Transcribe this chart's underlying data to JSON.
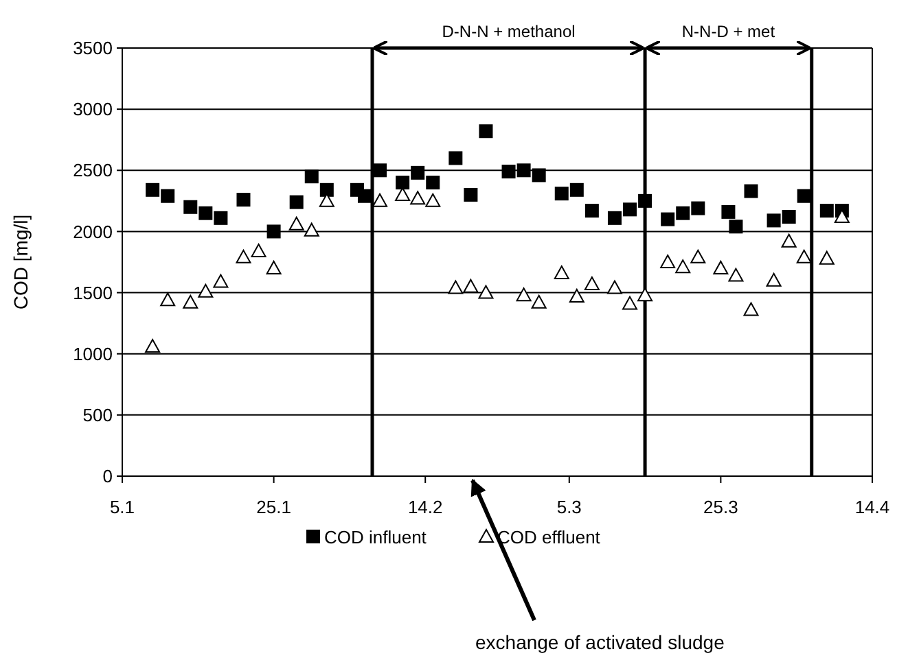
{
  "chart_data": {
    "type": "scatter",
    "ylabel": "COD [mg/l]",
    "xlim": [
      "--01-05",
      "--04-14"
    ],
    "xticks": [
      {
        "value": "--01-05",
        "label": "5.1"
      },
      {
        "value": "--01-25",
        "label": "25.1"
      },
      {
        "value": "--02-14",
        "label": "14.2"
      },
      {
        "value": "--03-05",
        "label": "5.3"
      },
      {
        "value": "--03-25",
        "label": "25.3"
      },
      {
        "value": "--04-14",
        "label": "14.4"
      }
    ],
    "ylim": [
      0,
      3500
    ],
    "yticks": [
      0,
      500,
      1000,
      1500,
      2000,
      2500,
      3000,
      3500
    ],
    "grid": "y",
    "legend": "bottom",
    "series": [
      {
        "name": "COD influent",
        "color": "#000000",
        "marker": "square",
        "x": [
          "--01-09",
          "--01-11",
          "--01-14",
          "--01-16",
          "--01-18",
          "--01-21",
          "--01-25",
          "--01-28",
          "--01-30",
          "--02-01",
          "--02-05",
          "--02-06",
          "--02-08",
          "--02-11",
          "--02-13",
          "--02-15",
          "--02-18",
          "--02-20",
          "--02-22",
          "--02-25",
          "--02-27",
          "--03-01",
          "--03-04",
          "--03-06",
          "--03-08",
          "--03-11",
          "--03-13",
          "--03-15",
          "--03-18",
          "--03-20",
          "--03-22",
          "--03-26",
          "--03-27",
          "--03-29",
          "--04-01",
          "--04-03",
          "--04-05",
          "--04-08",
          "--04-10"
        ],
        "values": [
          2340,
          2290,
          2200,
          2150,
          2110,
          2260,
          2000,
          2240,
          2450,
          2340,
          2340,
          2290,
          2500,
          2400,
          2480,
          2400,
          2600,
          2300,
          2820,
          2490,
          2500,
          2460,
          2310,
          2340,
          2170,
          2110,
          2180,
          2250,
          2100,
          2150,
          2190,
          2160,
          2040,
          2330,
          2090,
          2120,
          2290,
          2170,
          2170
        ]
      },
      {
        "name": "COD effluent",
        "color": "#000000",
        "marker": "triangle",
        "x": [
          "--01-09",
          "--01-11",
          "--01-14",
          "--01-16",
          "--01-18",
          "--01-21",
          "--01-23",
          "--01-25",
          "--01-28",
          "--01-30",
          "--02-01",
          "--02-08",
          "--02-11",
          "--02-13",
          "--02-15",
          "--02-18",
          "--02-20",
          "--02-22",
          "--02-27",
          "--03-01",
          "--03-04",
          "--03-06",
          "--03-08",
          "--03-11",
          "--03-13",
          "--03-15",
          "--03-18",
          "--03-20",
          "--03-22",
          "--03-25",
          "--03-27",
          "--03-29",
          "--04-01",
          "--04-03",
          "--04-05",
          "--04-08",
          "--04-10"
        ],
        "values": [
          1060,
          1440,
          1420,
          1510,
          1590,
          1790,
          1840,
          1700,
          2060,
          2010,
          2250,
          2250,
          2300,
          2270,
          2250,
          1540,
          1550,
          1500,
          1480,
          1420,
          1660,
          1470,
          1570,
          1540,
          1410,
          1480,
          1750,
          1710,
          1790,
          1700,
          1640,
          1360,
          1600,
          1920,
          1790,
          1780,
          2120
        ]
      }
    ],
    "ref_lines": [
      {
        "axis": "x",
        "value": "--02-07"
      },
      {
        "axis": "x",
        "value": "--03-15"
      },
      {
        "axis": "x",
        "value": "--04-06"
      }
    ],
    "annotations": [
      "D-N-N + methanol",
      "N-N-D + met",
      "exchange of activated sludge"
    ]
  }
}
